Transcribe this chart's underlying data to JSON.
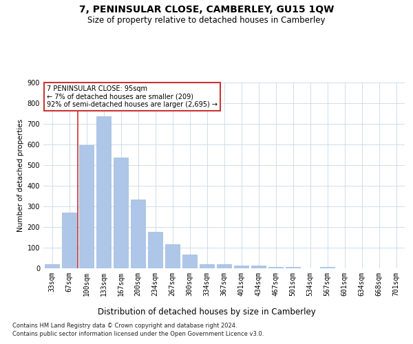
{
  "title": "7, PENINSULAR CLOSE, CAMBERLEY, GU15 1QW",
  "subtitle": "Size of property relative to detached houses in Camberley",
  "xlabel": "Distribution of detached houses by size in Camberley",
  "ylabel": "Number of detached properties",
  "footer_line1": "Contains HM Land Registry data © Crown copyright and database right 2024.",
  "footer_line2": "Contains public sector information licensed under the Open Government Licence v3.0.",
  "annotation_line1": "7 PENINSULAR CLOSE: 95sqm",
  "annotation_line2": "← 7% of detached houses are smaller (209)",
  "annotation_line3": "92% of semi-detached houses are larger (2,695) →",
  "bar_values": [
    20,
    270,
    597,
    737,
    537,
    335,
    178,
    118,
    68,
    20,
    20,
    12,
    12,
    8,
    7,
    0,
    8,
    0,
    0,
    0,
    0
  ],
  "bar_labels": [
    "33sqm",
    "67sqm",
    "100sqm",
    "133sqm",
    "167sqm",
    "200sqm",
    "234sqm",
    "267sqm",
    "300sqm",
    "334sqm",
    "367sqm",
    "401sqm",
    "434sqm",
    "467sqm",
    "501sqm",
    "534sqm",
    "567sqm",
    "601sqm",
    "634sqm",
    "668sqm",
    "701sqm"
  ],
  "bar_color": "#aec6e8",
  "highlight_color": "#cc3333",
  "ylim": [
    0,
    900
  ],
  "yticks": [
    0,
    100,
    200,
    300,
    400,
    500,
    600,
    700,
    800,
    900
  ],
  "vline_x": 1.5,
  "background_color": "#ffffff",
  "grid_color": "#c8d8e8",
  "title_fontsize": 10,
  "subtitle_fontsize": 8.5,
  "ylabel_fontsize": 7.5,
  "xlabel_fontsize": 8.5,
  "tick_fontsize": 7,
  "annotation_fontsize": 7,
  "footer_fontsize": 6
}
